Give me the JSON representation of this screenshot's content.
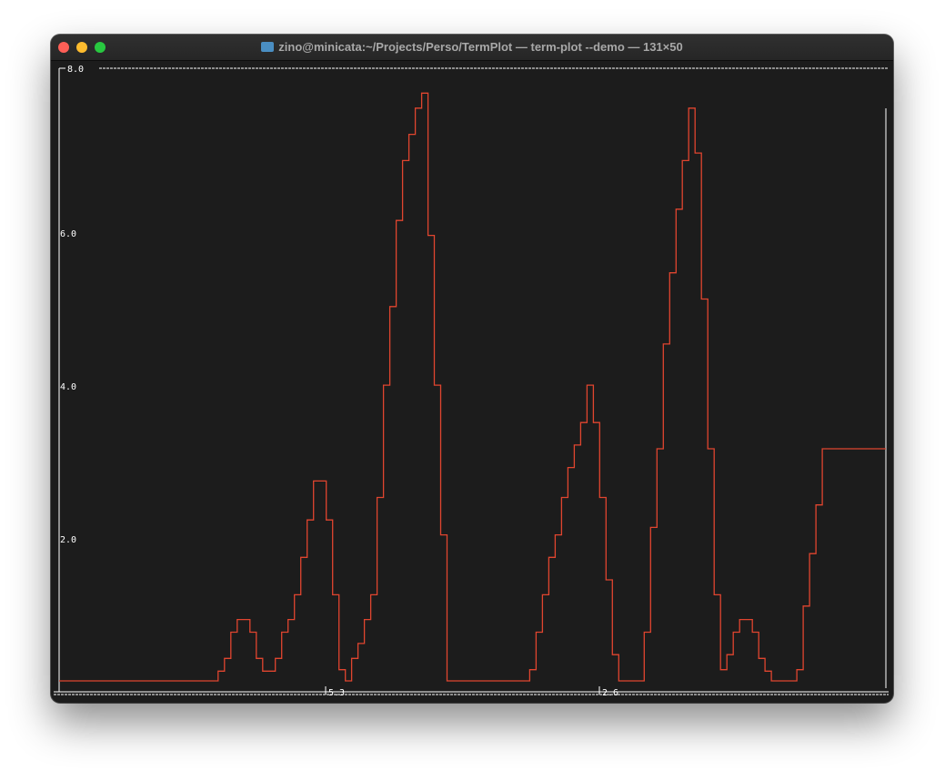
{
  "window": {
    "title": "zino@minicata:~/Projects/Perso/TermPlot — term-plot --demo — 131×50",
    "title_icon": "folder-icon"
  },
  "colors": {
    "background": "#1c1c1c",
    "axis": "#ffffff",
    "series": "#e0452f"
  },
  "chart_data": {
    "type": "line",
    "style": "step",
    "title": "",
    "xlabel": "",
    "ylabel": "",
    "ylim": [
      0,
      8.0
    ],
    "ytick_labels": [
      "8.0",
      "6.0",
      "4.0",
      "2.0"
    ],
    "xtick_labels": [
      "5.3",
      "2.6"
    ],
    "grid": false,
    "series": [
      {
        "values": [
          0,
          0,
          0,
          0,
          0,
          0,
          0,
          0,
          0,
          0,
          0,
          0,
          0,
          0,
          0,
          0,
          0,
          0,
          0,
          0,
          0,
          0,
          0,
          0,
          0,
          0.13,
          0.3,
          0.65,
          0.82,
          0.82,
          0.65,
          0.3,
          0.13,
          0.13,
          0.3,
          0.65,
          0.82,
          1.15,
          1.65,
          2.15,
          2.67,
          2.67,
          2.15,
          1.15,
          0.15,
          0,
          0.3,
          0.5,
          0.82,
          1.15,
          2.45,
          3.95,
          5.0,
          6.15,
          6.95,
          7.3,
          7.65,
          7.85,
          5.95,
          3.95,
          1.95,
          0,
          0,
          0,
          0,
          0,
          0,
          0,
          0,
          0,
          0,
          0,
          0,
          0,
          0.15,
          0.65,
          1.15,
          1.65,
          1.95,
          2.45,
          2.85,
          3.15,
          3.45,
          3.95,
          3.45,
          2.45,
          1.35,
          0.35,
          0,
          0,
          0,
          0,
          0.65,
          2.05,
          3.1,
          4.5,
          5.45,
          6.3,
          6.95,
          7.65,
          7.05,
          5.1,
          3.1,
          1.15,
          0.15,
          0.35,
          0.65,
          0.82,
          0.82,
          0.65,
          0.3,
          0.13,
          0,
          0,
          0,
          0,
          0.15,
          1.0,
          1.7,
          2.35,
          3.1,
          3.1,
          3.1,
          3.1,
          3.1,
          3.1,
          3.1,
          3.1,
          3.1,
          3.1
        ]
      }
    ]
  }
}
